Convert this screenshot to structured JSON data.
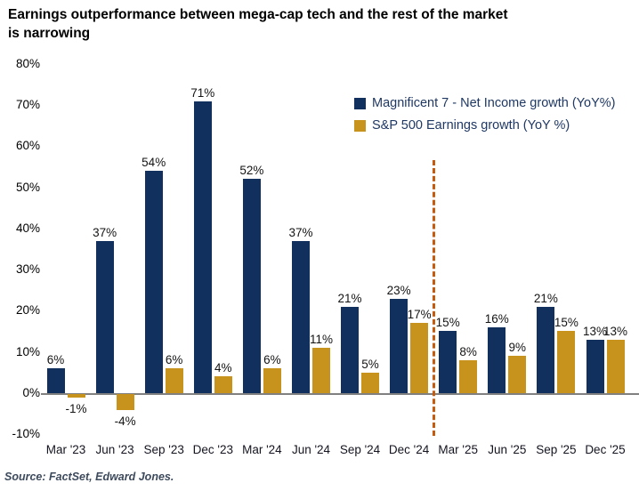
{
  "title": "Earnings outperformance between mega-cap tech and the rest of the market is narrowing",
  "source": "Source: FactSet, Edward Jones.",
  "colors": {
    "mag7_navy": "#12305E",
    "sp500_gold": "#C8931D",
    "divider_orange": "#C55A11",
    "axis_gray": "#808080"
  },
  "chart_data": {
    "type": "bar",
    "title": "Earnings outperformance between mega-cap tech and the rest of the market is narrowing",
    "categories": [
      "Mar '23",
      "Jun '23",
      "Sep '23",
      "Dec '23",
      "Mar '24",
      "Jun '24",
      "Sep '24",
      "Dec '24",
      "Mar '25",
      "Jun '25",
      "Sep '25",
      "Dec '25"
    ],
    "series": [
      {
        "name": "Magnificent 7 - Net Income growth (YoY%)",
        "color": "#12305E",
        "values": [
          6,
          37,
          54,
          71,
          52,
          37,
          21,
          23,
          15,
          16,
          21,
          13
        ],
        "labels": [
          "6%",
          "37%",
          "54%",
          "71%",
          "52%",
          "37%",
          "21%",
          "23%",
          "15%",
          "16%",
          "21%",
          "13%"
        ]
      },
      {
        "name": "S&P 500 Earnings growth (YoY %)",
        "color": "#C8931D",
        "values": [
          -1,
          -4,
          6,
          4,
          6,
          11,
          5,
          17,
          8,
          9,
          15,
          13
        ],
        "labels": [
          "-1%",
          "-4%",
          "6%",
          "4%",
          "6%",
          "11%",
          "5%",
          "17%",
          "8%",
          "9%",
          "15%",
          "13%"
        ]
      }
    ],
    "xlabel": "",
    "ylabel": "",
    "ylim": [
      -10,
      80
    ],
    "y_ticks": [
      {
        "value": 80,
        "label": "80%"
      },
      {
        "value": 70,
        "label": "70%"
      },
      {
        "value": 60,
        "label": "60%"
      },
      {
        "value": 50,
        "label": "50%"
      },
      {
        "value": 40,
        "label": "40%"
      },
      {
        "value": 30,
        "label": "30%"
      },
      {
        "value": 20,
        "label": "20%"
      },
      {
        "value": 10,
        "label": "10%"
      },
      {
        "value": 0,
        "label": "0%"
      },
      {
        "value": -10,
        "label": "-10%"
      }
    ],
    "grid": false,
    "legend_position": "top-right",
    "annotations": [
      {
        "type": "vline",
        "between_categories": [
          "Dec '24",
          "Mar '25"
        ],
        "style": "dashed",
        "color": "#C55A11"
      }
    ]
  }
}
